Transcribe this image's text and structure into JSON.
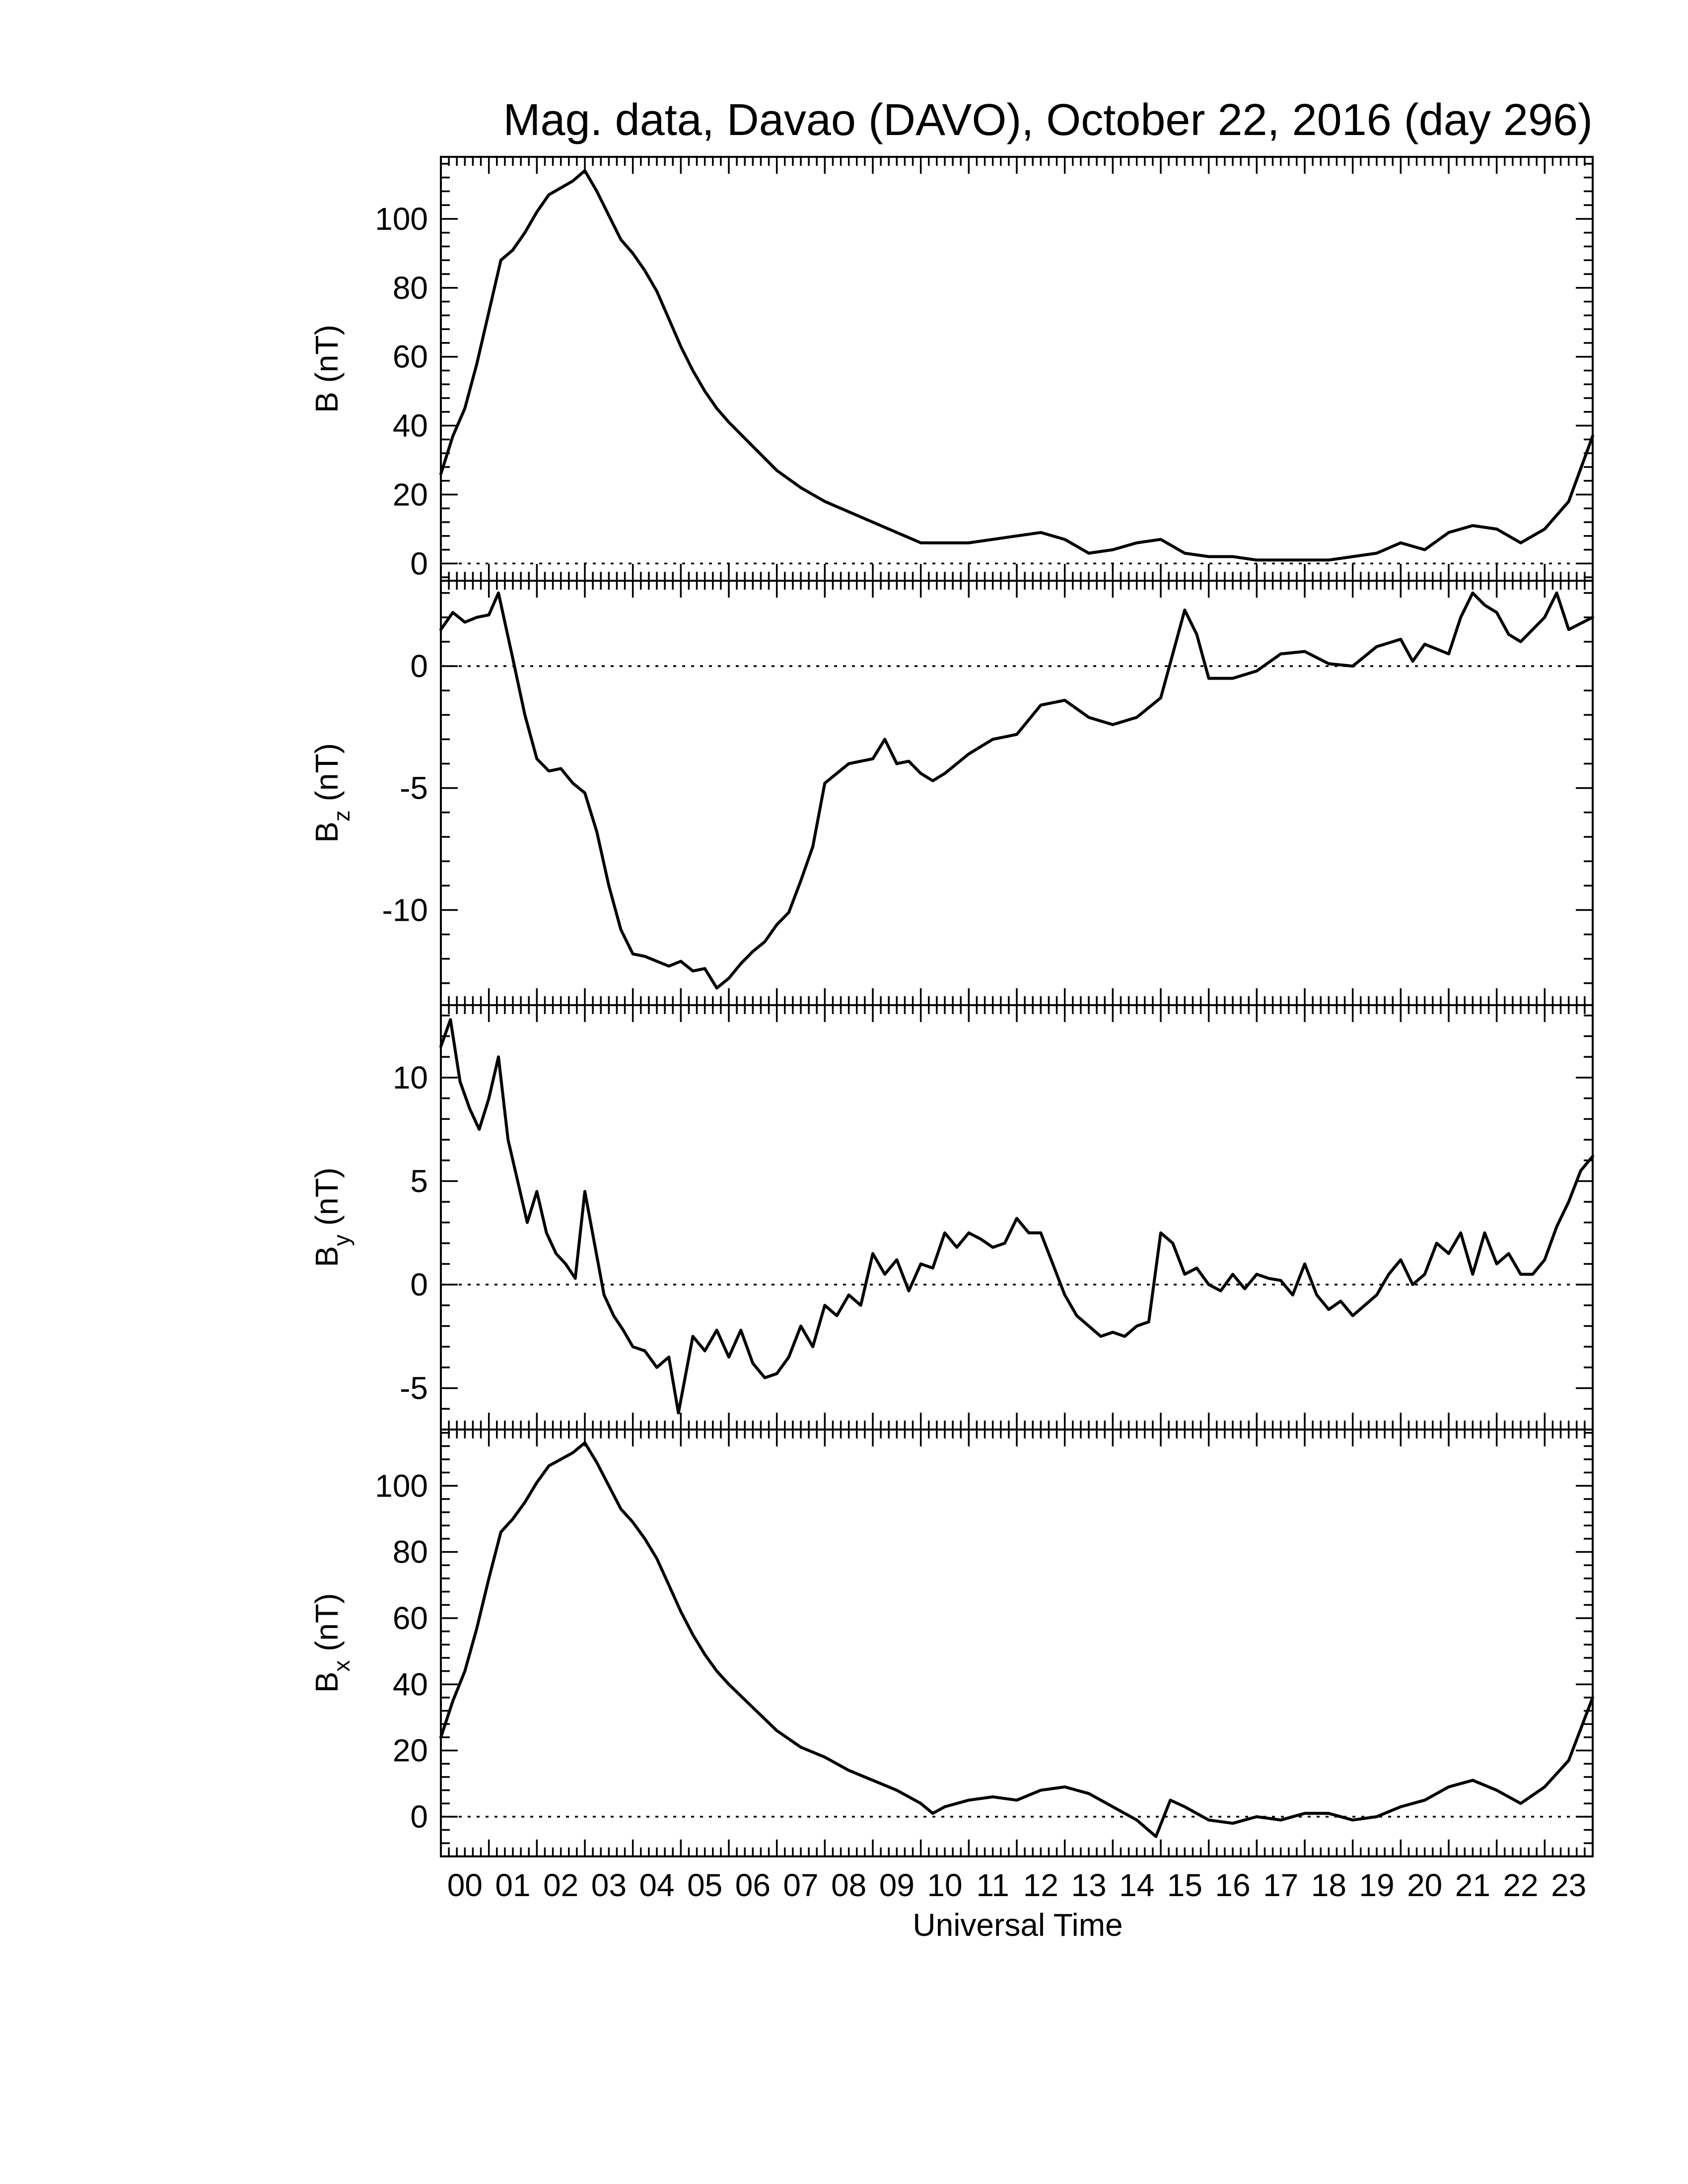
{
  "chart_data": {
    "type": "line",
    "title": "Mag. data, Davao (DAVO), October 22, 2016 (day 296)",
    "xlabel": "Universal Time",
    "x_tick_labels": [
      "00",
      "01",
      "02",
      "03",
      "04",
      "05",
      "06",
      "07",
      "08",
      "09",
      "10",
      "11",
      "12",
      "13",
      "14",
      "15",
      "16",
      "17",
      "18",
      "19",
      "20",
      "21",
      "22",
      "23"
    ],
    "xlim": [
      0,
      24
    ],
    "panels": [
      {
        "ylabel": "B (nT)",
        "ylabel_base": "B",
        "ylabel_sub": "",
        "ylabel_unit": "(nT)",
        "ylim": [
          -5,
          118
        ],
        "yticks": [
          0,
          20,
          40,
          60,
          80,
          100
        ],
        "zero_line": true,
        "x": [
          0,
          0.25,
          0.5,
          0.75,
          1,
          1.25,
          1.5,
          1.75,
          2,
          2.25,
          2.5,
          2.75,
          3,
          3.25,
          3.5,
          3.75,
          4,
          4.25,
          4.5,
          4.75,
          5,
          5.25,
          5.5,
          5.75,
          6,
          6.5,
          7,
          7.5,
          8,
          8.5,
          9,
          9.5,
          10,
          10.5,
          11,
          11.5,
          12,
          12.5,
          13,
          13.5,
          14,
          14.5,
          15,
          15.5,
          16,
          16.5,
          17,
          17.5,
          18,
          18.5,
          19,
          19.5,
          20,
          20.5,
          21,
          21.5,
          22,
          22.5,
          23,
          23.5,
          24
        ],
        "values": [
          26,
          37,
          45,
          58,
          73,
          88,
          91,
          96,
          102,
          107,
          109,
          111,
          114,
          108,
          101,
          94,
          90,
          85,
          79,
          71,
          63,
          56,
          50,
          45,
          41,
          34,
          27,
          22,
          18,
          15,
          12,
          9,
          6,
          6,
          6,
          7,
          8,
          9,
          7,
          3,
          4,
          6,
          7,
          3,
          2,
          2,
          1,
          1,
          1,
          1,
          2,
          3,
          6,
          4,
          9,
          11,
          10,
          6,
          10,
          18,
          37
        ]
      },
      {
        "ylabel": "Bz (nT)",
        "ylabel_base": "B",
        "ylabel_sub": "z",
        "ylabel_unit": "(nT)",
        "ylim": [
          -13.9,
          3.5
        ],
        "yticks": [
          -10,
          -5,
          0
        ],
        "zero_line": true,
        "x": [
          0,
          0.25,
          0.5,
          0.75,
          1,
          1.2,
          1.5,
          1.75,
          2,
          2.25,
          2.5,
          2.75,
          3,
          3.25,
          3.5,
          3.75,
          4,
          4.25,
          4.5,
          4.75,
          5,
          5.25,
          5.5,
          5.75,
          6,
          6.25,
          6.5,
          6.75,
          7,
          7.25,
          7.5,
          7.75,
          8,
          8.5,
          9,
          9.25,
          9.5,
          9.75,
          10,
          10.25,
          10.5,
          11,
          11.5,
          12,
          12.5,
          13,
          13.5,
          14,
          14.5,
          15,
          15.25,
          15.5,
          15.75,
          16,
          16.5,
          17,
          17.5,
          18,
          18.5,
          19,
          19.5,
          20,
          20.25,
          20.5,
          21,
          21.25,
          21.5,
          21.75,
          22,
          22.25,
          22.5,
          23,
          23.25,
          23.5,
          24
        ],
        "values": [
          1.5,
          2.2,
          1.8,
          2.0,
          2.1,
          3.0,
          0.3,
          -2.0,
          -3.8,
          -4.3,
          -4.2,
          -4.8,
          -5.2,
          -6.8,
          -9.0,
          -10.8,
          -11.8,
          -11.9,
          -12.1,
          -12.3,
          -12.1,
          -12.5,
          -12.4,
          -13.2,
          -12.8,
          -12.2,
          -11.7,
          -11.3,
          -10.6,
          -10.1,
          -8.8,
          -7.4,
          -4.8,
          -4.0,
          -3.8,
          -3.0,
          -4.0,
          -3.9,
          -4.4,
          -4.7,
          -4.4,
          -3.6,
          -3.0,
          -2.8,
          -1.6,
          -1.4,
          -2.1,
          -2.4,
          -2.1,
          -1.3,
          0.5,
          2.3,
          1.3,
          -0.5,
          -0.5,
          -0.2,
          0.5,
          0.6,
          0.1,
          0.0,
          0.8,
          1.1,
          0.2,
          0.9,
          0.5,
          2.0,
          3.0,
          2.5,
          2.2,
          1.3,
          1.0,
          2.0,
          3.0,
          1.5,
          2.0
        ]
      },
      {
        "ylabel": "By (nT)",
        "ylabel_base": "B",
        "ylabel_sub": "y",
        "ylabel_unit": "(nT)",
        "ylim": [
          -7,
          13.5
        ],
        "yticks": [
          -5,
          0,
          5,
          10
        ],
        "zero_line": true,
        "x": [
          0,
          0.2,
          0.4,
          0.6,
          0.8,
          1,
          1.2,
          1.4,
          1.6,
          1.8,
          2,
          2.2,
          2.4,
          2.6,
          2.8,
          3,
          3.2,
          3.4,
          3.6,
          3.8,
          4,
          4.25,
          4.5,
          4.75,
          4.95,
          5.25,
          5.5,
          5.75,
          6,
          6.25,
          6.5,
          6.75,
          7,
          7.25,
          7.5,
          7.75,
          8,
          8.25,
          8.5,
          8.75,
          9,
          9.25,
          9.5,
          9.75,
          10,
          10.25,
          10.5,
          10.75,
          11,
          11.25,
          11.5,
          11.75,
          12,
          12.25,
          12.5,
          12.75,
          13,
          13.25,
          13.5,
          13.75,
          14,
          14.25,
          14.5,
          14.75,
          15,
          15.25,
          15.5,
          15.75,
          16,
          16.25,
          16.5,
          16.75,
          17,
          17.25,
          17.5,
          17.75,
          18,
          18.25,
          18.5,
          18.75,
          19,
          19.25,
          19.5,
          19.75,
          20,
          20.25,
          20.5,
          20.75,
          21,
          21.25,
          21.5,
          21.75,
          22,
          22.25,
          22.5,
          22.75,
          23,
          23.25,
          23.5,
          23.75,
          24
        ],
        "values": [
          11.5,
          12.8,
          9.8,
          8.5,
          7.5,
          9.0,
          11.0,
          7.0,
          5.0,
          3.0,
          4.5,
          2.5,
          1.5,
          1.0,
          0.3,
          4.5,
          2.0,
          -0.5,
          -1.5,
          -2.2,
          -3.0,
          -3.2,
          -4.0,
          -3.5,
          -6.2,
          -2.5,
          -3.2,
          -2.2,
          -3.5,
          -2.2,
          -3.8,
          -4.5,
          -4.3,
          -3.5,
          -2.0,
          -3.0,
          -1.0,
          -1.5,
          -0.5,
          -1.0,
          1.5,
          0.5,
          1.2,
          -0.3,
          1.0,
          0.8,
          2.5,
          1.8,
          2.5,
          2.2,
          1.8,
          2.0,
          3.2,
          2.5,
          2.5,
          1.0,
          -0.5,
          -1.5,
          -2.0,
          -2.5,
          -2.3,
          -2.5,
          -2.0,
          -1.8,
          2.5,
          2.0,
          0.5,
          0.8,
          0.0,
          -0.3,
          0.5,
          -0.2,
          0.5,
          0.3,
          0.2,
          -0.5,
          1.0,
          -0.5,
          -1.2,
          -0.8,
          -1.5,
          -1.0,
          -0.5,
          0.5,
          1.2,
          0.0,
          0.5,
          2.0,
          1.5,
          2.5,
          0.5,
          2.5,
          1.0,
          1.5,
          0.5,
          0.5,
          1.2,
          2.8,
          4.0,
          5.5,
          6.2
        ]
      },
      {
        "ylabel": "Bx (nT)",
        "ylabel_base": "B",
        "ylabel_sub": "x",
        "ylabel_unit": "(nT)",
        "ylim": [
          -12,
          117
        ],
        "yticks": [
          0,
          20,
          40,
          60,
          80,
          100
        ],
        "zero_line": true,
        "x": [
          0,
          0.25,
          0.5,
          0.75,
          1,
          1.25,
          1.5,
          1.75,
          2,
          2.25,
          2.5,
          2.75,
          3,
          3.25,
          3.5,
          3.75,
          4,
          4.25,
          4.5,
          4.75,
          5,
          5.25,
          5.5,
          5.75,
          6,
          6.5,
          7,
          7.5,
          8,
          8.5,
          9,
          9.5,
          10,
          10.25,
          10.5,
          11,
          11.5,
          12,
          12.5,
          13,
          13.5,
          14,
          14.5,
          14.9,
          15.2,
          15.5,
          16,
          16.5,
          17,
          17.5,
          18,
          18.5,
          19,
          19.5,
          20,
          20.5,
          21,
          21.5,
          22,
          22.5,
          23,
          23.5,
          24
        ],
        "values": [
          24,
          35,
          44,
          57,
          72,
          86,
          90,
          95,
          101,
          106,
          108,
          110,
          113,
          107,
          100,
          93,
          89,
          84,
          78,
          70,
          62,
          55,
          49,
          44,
          40,
          33,
          26,
          21,
          18,
          14,
          11,
          8,
          4,
          1,
          3,
          5,
          6,
          5,
          8,
          9,
          7,
          3,
          -1,
          -6,
          5,
          3,
          -1,
          -2,
          0,
          -1,
          1,
          1,
          -1,
          0,
          3,
          5,
          9,
          11,
          8,
          4,
          9,
          17,
          36
        ]
      }
    ]
  }
}
